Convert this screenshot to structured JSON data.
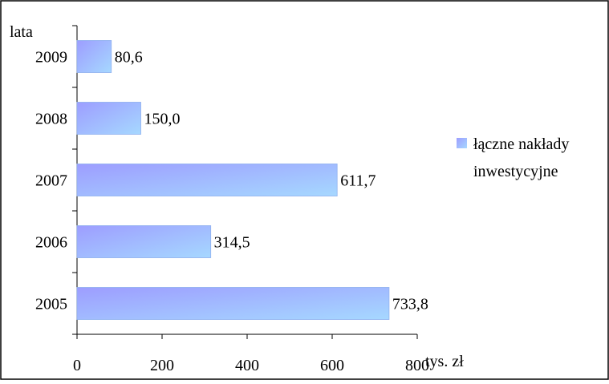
{
  "chart_data": {
    "type": "bar",
    "orientation": "horizontal",
    "title": "",
    "categories": [
      "2009",
      "2008",
      "2007",
      "2006",
      "2005"
    ],
    "series": [
      {
        "name": "łączne nakłady inwestycyjne",
        "values": [
          80.6,
          150.0,
          611.7,
          314.5,
          733.8
        ],
        "value_labels": [
          "80,6",
          "150,0",
          "611,7",
          "314,5",
          "733,8"
        ]
      }
    ],
    "ylabel": "lata",
    "xlabel": "tys. zł",
    "xlim": [
      0,
      800
    ],
    "xticks": [
      0,
      200,
      400,
      600,
      800
    ],
    "xtick_labels": [
      "0",
      "200",
      "400",
      "600",
      "800"
    ],
    "grid": false,
    "legend_position": "right",
    "legend_lines": [
      "łączne nakłady",
      "inwestycyjne"
    ],
    "bar_color_start": "#9d9dff",
    "bar_color_end": "#a6d8ff"
  }
}
